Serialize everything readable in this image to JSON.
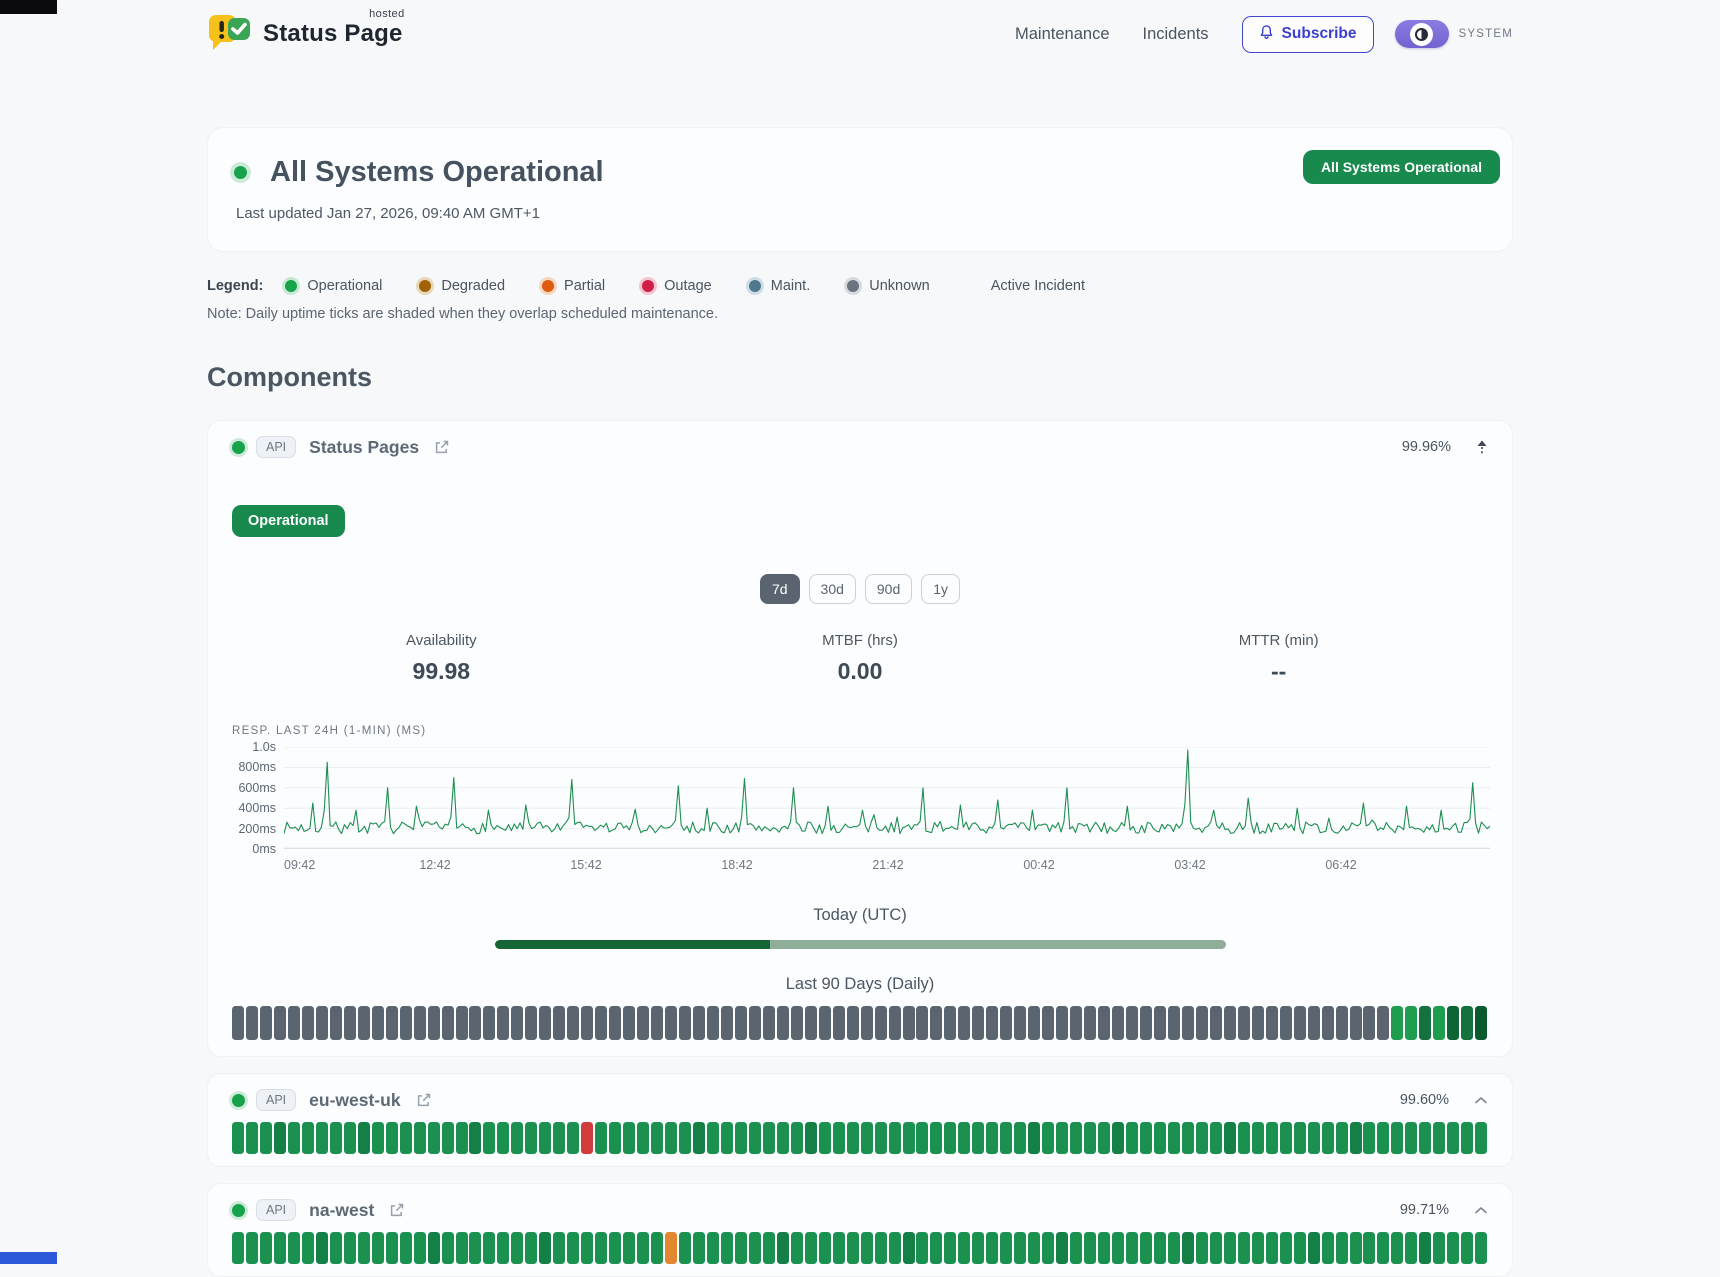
{
  "header": {
    "brand": {
      "name": "Status Page",
      "superscript": "hosted"
    },
    "nav": [
      {
        "label": "Maintenance"
      },
      {
        "label": "Incidents"
      }
    ],
    "subscribe_label": "Subscribe",
    "theme": {
      "mode_label": "SYSTEM"
    }
  },
  "hero": {
    "title": "All Systems Operational",
    "last_updated": "Last updated Jan 27, 2026, 09:40 AM GMT+1",
    "badge": "All Systems Operational"
  },
  "legend": {
    "label": "Legend:",
    "items": [
      {
        "label": "Operational",
        "color": "#17a34a",
        "ring": "#c8e8d4"
      },
      {
        "label": "Degraded",
        "color": "#a16207",
        "ring": "#e6d9b8"
      },
      {
        "label": "Partial",
        "color": "#dd5a0e",
        "ring": "#f5d6c0"
      },
      {
        "label": "Outage",
        "color": "#ce2047",
        "ring": "#f2c6d1"
      },
      {
        "label": "Maint.",
        "color": "#50788c",
        "ring": "#cfdde4"
      },
      {
        "label": "Unknown",
        "color": "#6b7280",
        "ring": "#d7dade"
      }
    ],
    "active_incident_label": "Active Incident"
  },
  "note": "Note: Daily uptime ticks are shaded when they overlap scheduled maintenance.",
  "components_title": "Components",
  "components": [
    {
      "type_badge": "API",
      "name": "Status Pages",
      "uptime": "99.96%",
      "expanded": true,
      "status_label": "Operational",
      "ranges": [
        "7d",
        "30d",
        "90d",
        "1y"
      ],
      "active_range": "7d",
      "stats": [
        {
          "label": "Availability",
          "value": "99.98"
        },
        {
          "label": "MTBF (hrs)",
          "value": "0.00"
        },
        {
          "label": "MTTR (min)",
          "value": "--"
        }
      ],
      "chart": {
        "type": "line",
        "title": "RESP. LAST 24H (1-MIN) (MS)",
        "y_ticks": [
          "1.0s",
          "800ms",
          "600ms",
          "400ms",
          "200ms",
          "0ms"
        ],
        "y_max_ms": 1000,
        "x_ticks": [
          "09:42",
          "12:42",
          "15:42",
          "18:42",
          "21:42",
          "00:42",
          "03:42",
          "06:42"
        ],
        "baseline_range_ms": [
          150,
          265
        ],
        "line_color": "#1e8e50",
        "seed": 7,
        "spikes": [
          [
            0.025,
            450
          ],
          [
            0.036,
            850
          ],
          [
            0.06,
            380
          ],
          [
            0.086,
            600
          ],
          [
            0.11,
            420
          ],
          [
            0.141,
            700
          ],
          [
            0.17,
            380
          ],
          [
            0.2,
            430
          ],
          [
            0.239,
            680
          ],
          [
            0.29,
            390
          ],
          [
            0.328,
            620
          ],
          [
            0.35,
            400
          ],
          [
            0.383,
            690
          ],
          [
            0.423,
            600
          ],
          [
            0.45,
            420
          ],
          [
            0.48,
            380
          ],
          [
            0.529,
            600
          ],
          [
            0.56,
            430
          ],
          [
            0.591,
            480
          ],
          [
            0.62,
            380
          ],
          [
            0.649,
            600
          ],
          [
            0.7,
            420
          ],
          [
            0.749,
            970
          ],
          [
            0.77,
            380
          ],
          [
            0.8,
            500
          ],
          [
            0.84,
            400
          ],
          [
            0.894,
            450
          ],
          [
            0.93,
            420
          ],
          [
            0.96,
            380
          ],
          [
            0.985,
            650
          ]
        ]
      },
      "today_label": "Today (UTC)",
      "today_progress_pct": 37.7,
      "today_fill_color": "#166534",
      "today_track_color": "#8fae9a",
      "history_label": "Last 90 Days (Daily)",
      "ticks": {
        "count": 90,
        "default_color": "#5b6570",
        "overrides": {
          "83": "#1f9d4f",
          "84": "#1f9d4f",
          "85": "#15713e",
          "86": "#1f9d4f",
          "87": "#0f6434",
          "88": "#15713e",
          "89": "#0b5a2e"
        }
      }
    },
    {
      "type_badge": "API",
      "name": "eu-west-uk",
      "uptime": "99.60%",
      "expanded": false,
      "ticks": {
        "count": 90,
        "default_color": "#1b9150",
        "overrides": {
          "3": "#158045",
          "9": "#158045",
          "17": "#158045",
          "25": "#d13b3b",
          "33": "#158045",
          "41": "#158045",
          "57": "#158045",
          "63": "#158045",
          "71": "#158045",
          "80": "#158045"
        }
      }
    },
    {
      "type_badge": "API",
      "name": "na-west",
      "uptime": "99.71%",
      "expanded": false,
      "ticks": {
        "count": 90,
        "default_color": "#1b9150",
        "overrides": {
          "6": "#158045",
          "14": "#158045",
          "22": "#158045",
          "31": "#e2862f",
          "39": "#158045",
          "48": "#158045",
          "59": "#158045",
          "68": "#158045",
          "77": "#158045",
          "85": "#158045"
        }
      }
    }
  ]
}
